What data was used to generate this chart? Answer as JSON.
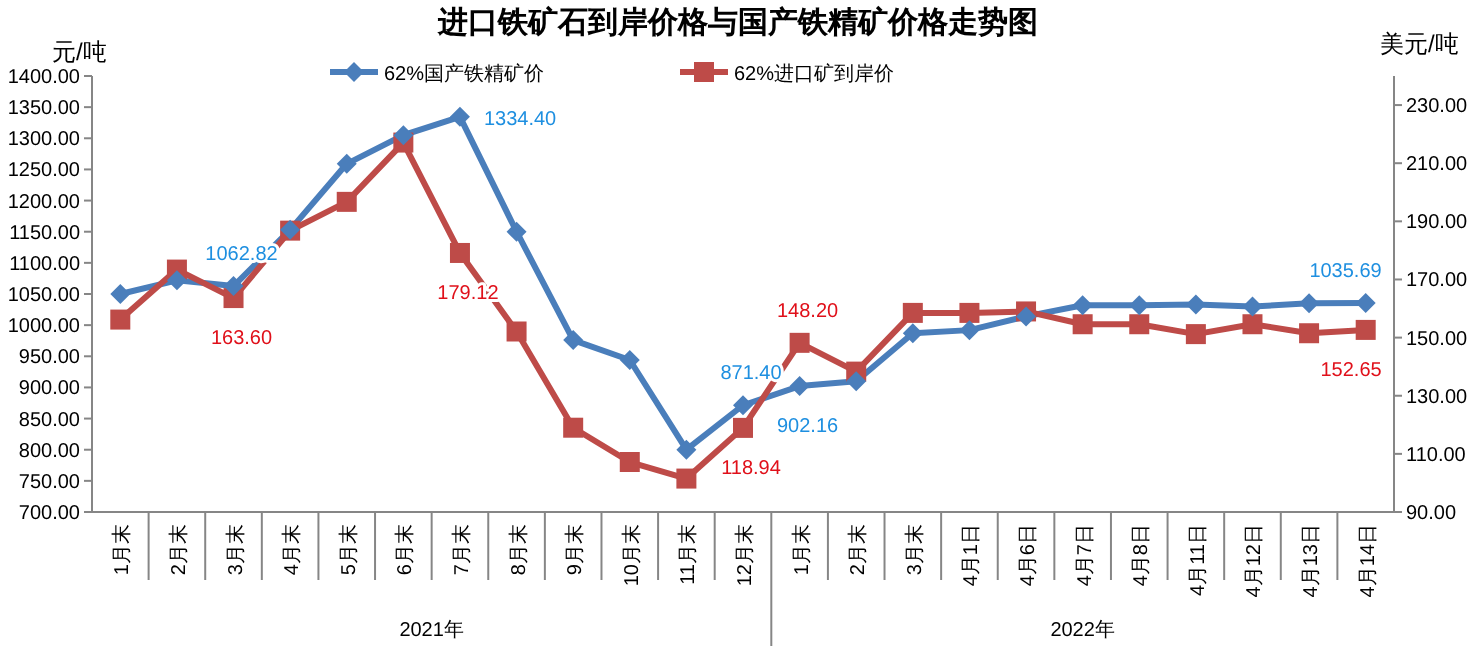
{
  "chart_data": {
    "type": "line",
    "title": "进口铁矿石到岸价格与国产铁精矿价格走势图",
    "ylabel": "元/吨",
    "y2label": "美元/吨",
    "categories": [
      "1月末",
      "2月末",
      "3月末",
      "4月末",
      "5月末",
      "6月末",
      "7月末",
      "8月末",
      "9月末",
      "10月末",
      "11月末",
      "12月末",
      "1月末",
      "2月末",
      "3月末",
      "4月1日",
      "4月6日",
      "4月7日",
      "4月8日",
      "4月11日",
      "4月12日",
      "4月13日",
      "4月14日"
    ],
    "series": [
      {
        "name": "62%国产铁精矿价",
        "color": "#4a7ebb",
        "marker": "diamond",
        "values": [
          1050,
          1072,
          1062.82,
          1153,
          1259,
          1305,
          1334.4,
          1150,
          976,
          944,
          800,
          871.4,
          902.16,
          910,
          987,
          992,
          1014,
          1032,
          1032,
          1033,
          1030,
          1035,
          1035.69
        ],
        "value_labels": [
          null,
          null,
          "1062.82",
          null,
          null,
          null,
          "1334.40",
          null,
          null,
          null,
          null,
          "871.40",
          "902.16",
          null,
          null,
          null,
          null,
          null,
          null,
          null,
          null,
          null,
          "1035.69"
        ]
      },
      {
        "name": "62%进口矿到岸价",
        "color": "#be4b48",
        "marker": "square",
        "axis": "y2",
        "values": [
          156.2,
          173.4,
          163.6,
          186.8,
          196.7,
          217.1,
          179.12,
          152.1,
          119,
          107.2,
          101.5,
          118.94,
          148.2,
          138.3,
          158.5,
          158.5,
          159,
          154.6,
          154.6,
          151.2,
          154.6,
          151.5,
          152.65
        ],
        "value_labels": [
          null,
          null,
          "163.60",
          null,
          null,
          null,
          "179.12",
          null,
          null,
          null,
          null,
          "118.94",
          "148.20",
          null,
          null,
          null,
          null,
          null,
          null,
          null,
          null,
          null,
          "152.65"
        ]
      }
    ],
    "ylim": [
      700,
      1400
    ],
    "yticks": [
      {
        "value": 700,
        "label": "700.00"
      },
      {
        "value": 750,
        "label": "750.00"
      },
      {
        "value": 800,
        "label": "800.00"
      },
      {
        "value": 850,
        "label": "850.00"
      },
      {
        "value": 900,
        "label": "900.00"
      },
      {
        "value": 950,
        "label": "950.00"
      },
      {
        "value": 1000,
        "label": "1000.00"
      },
      {
        "value": 1050,
        "label": "1050.00"
      },
      {
        "value": 1100,
        "label": "1100.00"
      },
      {
        "value": 1150,
        "label": "1150.00"
      },
      {
        "value": 1200,
        "label": "1200.00"
      },
      {
        "value": 1250,
        "label": "1250.00"
      },
      {
        "value": 1300,
        "label": "1300.00"
      },
      {
        "value": 1350,
        "label": "1350.00"
      },
      {
        "value": 1400,
        "label": "1400.00"
      }
    ],
    "y2lim": [
      90,
      240
    ],
    "y2ticks": [
      {
        "value": 90,
        "label": "90.00"
      },
      {
        "value": 110,
        "label": "110.00"
      },
      {
        "value": 130,
        "label": "130.00"
      },
      {
        "value": 150,
        "label": "150.00"
      },
      {
        "value": 170,
        "label": "170.00"
      },
      {
        "value": 190,
        "label": "190.00"
      },
      {
        "value": 210,
        "label": "210.00"
      },
      {
        "value": 230,
        "label": "230.00"
      }
    ],
    "annotations": [
      "2021年",
      "2022年"
    ],
    "grid": false,
    "legend": "top",
    "line_style": "solid"
  }
}
